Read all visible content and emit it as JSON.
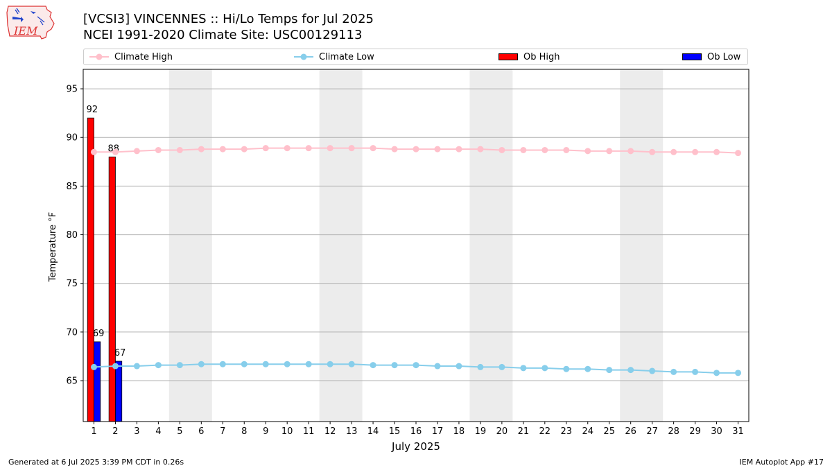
{
  "logo": {
    "text": "IEM"
  },
  "header": {
    "title": "[VCSI3] VINCENNES :: Hi/Lo Temps for Jul 2025",
    "subtitle": "NCEI 1991-2020 Climate Site: USC00129113"
  },
  "legend": {
    "placement": "top",
    "entries": [
      "Climate High",
      "Climate Low",
      "Ob High",
      "Ob Low"
    ]
  },
  "footer": {
    "left": "Generated at 6 Jul 2025 3:39 PM CDT in 0.26s",
    "right": "IEM Autoplot App #17"
  },
  "colors": {
    "climate_high": "#ffc0cb",
    "climate_low": "#87ceeb",
    "ob_high": "#ff0000",
    "ob_low": "#0000ff",
    "weekend_shade": "#ececec",
    "grid": "#b0b0b0"
  },
  "chart_data": {
    "type": "bar",
    "xlabel": "July 2025",
    "ylabel": "Temperature °F",
    "xlim": [
      0.5,
      31.5
    ],
    "ylim": [
      60.8,
      97
    ],
    "yticks": [
      65,
      70,
      75,
      80,
      85,
      90,
      95
    ],
    "x": [
      1,
      2,
      3,
      4,
      5,
      6,
      7,
      8,
      9,
      10,
      11,
      12,
      13,
      14,
      15,
      16,
      17,
      18,
      19,
      20,
      21,
      22,
      23,
      24,
      25,
      26,
      27,
      28,
      29,
      30,
      31
    ],
    "grid": "horizontal",
    "weekend_spans": [
      [
        5,
        6
      ],
      [
        12,
        13
      ],
      [
        19,
        20
      ],
      [
        26,
        27
      ]
    ],
    "series": [
      {
        "name": "Climate High",
        "kind": "line",
        "color": "#ffc0cb",
        "values": [
          88.5,
          88.5,
          88.6,
          88.7,
          88.7,
          88.8,
          88.8,
          88.8,
          88.9,
          88.9,
          88.9,
          88.9,
          88.9,
          88.9,
          88.8,
          88.8,
          88.8,
          88.8,
          88.8,
          88.7,
          88.7,
          88.7,
          88.7,
          88.6,
          88.6,
          88.6,
          88.5,
          88.5,
          88.5,
          88.5,
          88.4
        ]
      },
      {
        "name": "Climate Low",
        "kind": "line",
        "color": "#87ceeb",
        "values": [
          66.4,
          66.5,
          66.5,
          66.6,
          66.6,
          66.7,
          66.7,
          66.7,
          66.7,
          66.7,
          66.7,
          66.7,
          66.7,
          66.6,
          66.6,
          66.6,
          66.5,
          66.5,
          66.4,
          66.4,
          66.3,
          66.3,
          66.2,
          66.2,
          66.1,
          66.1,
          66.0,
          65.9,
          65.9,
          65.8,
          65.8
        ]
      },
      {
        "name": "Ob High",
        "kind": "bar",
        "color": "#ff0000",
        "x": [
          1,
          2
        ],
        "values": [
          92,
          88
        ],
        "labels": [
          "92",
          "88"
        ]
      },
      {
        "name": "Ob Low",
        "kind": "bar",
        "color": "#0000ff",
        "x": [
          1,
          2
        ],
        "values": [
          69,
          67
        ],
        "labels": [
          "69",
          "67"
        ]
      }
    ]
  }
}
